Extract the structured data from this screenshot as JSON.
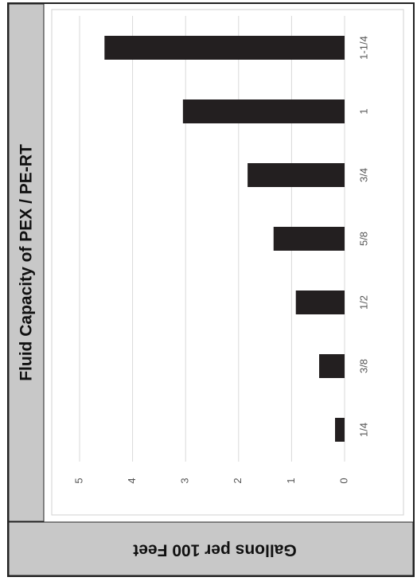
{
  "chart_data": {
    "type": "bar",
    "title": "Fluid Capacity of PEX / PE-RT",
    "value_axis_label": "Gallons per 100 Feet",
    "categories": [
      "1/4",
      "3/8",
      "1/2",
      "5/8",
      "3/4",
      "1",
      "1-1/4"
    ],
    "values": [
      0.18,
      0.48,
      0.92,
      1.34,
      1.83,
      3.05,
      4.53
    ],
    "color": "#231f20",
    "ylim": [
      0,
      5
    ],
    "yticks": [
      0,
      1,
      2,
      3,
      4,
      5
    ],
    "grid": true
  }
}
